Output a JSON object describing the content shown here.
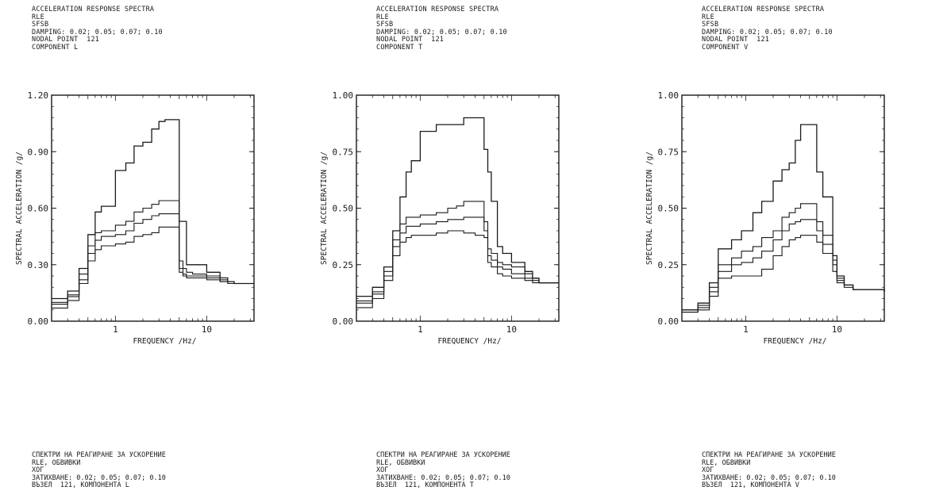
{
  "panels": [
    {
      "header": [
        "ACCELERATION RESPONSE SPECTRA",
        "RLE",
        "SFSB",
        "DAMPING: 0.02; 0.05; 0.07; 0.10",
        "NODAL POINT  121",
        "COMPONENT L"
      ],
      "footer": [
        "СПЕКТРИ НА РЕАГИРАНЕ ЗА УСКОРЕНИЕ",
        "RLE, ОБВИВКИ",
        "ХОГ",
        "ЗАТИХВАНЕ: 0.02; 0.05; 0.07; 0.10",
        "ВЪЗЕЛ  121, КОМПОНЕНТА L"
      ]
    },
    {
      "header": [
        "ACCELERATION RESPONSE SPECTRA",
        "RLE",
        "SFSB",
        "DAMPING: 0.02; 0.05; 0.07; 0.10",
        "NODAL POINT  121",
        "COMPONENT T"
      ],
      "footer": [
        "СПЕКТРИ НА РЕАГИРАНЕ ЗА УСКОРЕНИЕ",
        "RLE, ОБВИВКИ",
        "ХОГ",
        "ЗАТИХВАНЕ: 0.02; 0.05; 0.07; 0.10",
        "ВЪЗЕЛ  121, КОМПОНЕНТА T"
      ]
    },
    {
      "header": [
        "ACCELERATION RESPONSE SPECTRA",
        "RLE",
        "SFSB",
        "DAMPING: 0.02; 0.05; 0.07; 0.10",
        "NODAL POINT  121",
        "COMPONENT V"
      ],
      "footer": [
        "СПЕКТРИ НА РЕАГИРАНЕ ЗА УСКОРЕНИЕ",
        "RLE, ОБВИВКИ",
        "ХОГ",
        "ЗАТИХВАНЕ: 0.02; 0.05; 0.07; 0.10",
        "ВЪЗЕЛ  121, КОМПОНЕНТА V"
      ]
    }
  ],
  "chart_data": [
    {
      "type": "line",
      "xscale": "log",
      "xlim": [
        0.2,
        33
      ],
      "ylim": [
        0,
        1.2
      ],
      "xticks": [
        1,
        10
      ],
      "yticks": [
        0.0,
        0.3,
        0.6,
        0.9,
        1.2
      ],
      "ytick_labels": [
        "0.00",
        "0.30",
        "0.60",
        "0.90",
        "1.20"
      ],
      "xlabel": "FREQUENCY /Hz/",
      "ylabel": "SPECTRAL ACCELERATION /g/",
      "series": [
        {
          "x": [
            0.2,
            0.3,
            0.4,
            0.5,
            0.6,
            0.7,
            0.8,
            1.0,
            1.3,
            1.6,
            2.0,
            2.5,
            3.0,
            3.5,
            4.5,
            5.0,
            5.5,
            6.0,
            7.0,
            10.0,
            14.0,
            17.0,
            20.0,
            33.0
          ],
          "y": [
            0.12,
            0.16,
            0.28,
            0.46,
            0.58,
            0.61,
            0.61,
            0.8,
            0.84,
            0.93,
            0.95,
            1.02,
            1.06,
            1.07,
            1.07,
            0.53,
            0.53,
            0.3,
            0.3,
            0.26,
            0.23,
            0.21,
            0.2,
            0.2
          ]
        },
        {
          "x": [
            0.2,
            0.3,
            0.4,
            0.5,
            0.6,
            0.7,
            0.8,
            1.0,
            1.3,
            1.6,
            2.0,
            2.5,
            3.0,
            3.5,
            4.5,
            5.0,
            5.5,
            6.0,
            7.0,
            10.0,
            14.0,
            17.0,
            20.0,
            33.0
          ],
          "y": [
            0.1,
            0.14,
            0.25,
            0.4,
            0.47,
            0.48,
            0.48,
            0.51,
            0.53,
            0.58,
            0.6,
            0.62,
            0.64,
            0.64,
            0.64,
            0.32,
            0.28,
            0.26,
            0.25,
            0.24,
            0.22,
            0.21,
            0.2,
            0.2
          ]
        },
        {
          "x": [
            0.2,
            0.3,
            0.4,
            0.5,
            0.6,
            0.7,
            0.8,
            1.0,
            1.3,
            1.6,
            2.0,
            2.5,
            3.0,
            3.5,
            4.5,
            5.0,
            5.5,
            6.0,
            7.0,
            10.0,
            14.0,
            17.0,
            20.0,
            33.0
          ],
          "y": [
            0.09,
            0.13,
            0.22,
            0.36,
            0.43,
            0.45,
            0.45,
            0.46,
            0.48,
            0.52,
            0.54,
            0.56,
            0.57,
            0.57,
            0.57,
            0.28,
            0.25,
            0.24,
            0.24,
            0.23,
            0.21,
            0.2,
            0.2,
            0.2
          ]
        },
        {
          "x": [
            0.2,
            0.3,
            0.4,
            0.5,
            0.6,
            0.7,
            0.8,
            1.0,
            1.3,
            1.6,
            2.0,
            2.5,
            3.0,
            3.5,
            4.5,
            5.0,
            5.5,
            6.0,
            7.0,
            10.0,
            14.0,
            17.0,
            20.0,
            33.0
          ],
          "y": [
            0.07,
            0.11,
            0.2,
            0.32,
            0.38,
            0.4,
            0.4,
            0.41,
            0.42,
            0.45,
            0.46,
            0.47,
            0.5,
            0.5,
            0.5,
            0.26,
            0.24,
            0.23,
            0.23,
            0.22,
            0.21,
            0.2,
            0.2,
            0.2
          ]
        }
      ]
    },
    {
      "type": "line",
      "xscale": "log",
      "xlim": [
        0.2,
        33
      ],
      "ylim": [
        0,
        1.0
      ],
      "xticks": [
        1,
        10
      ],
      "yticks": [
        0.0,
        0.25,
        0.5,
        0.75,
        1.0
      ],
      "ytick_labels": [
        "0.00",
        "0.25",
        "0.50",
        "0.75",
        "1.00"
      ],
      "xlabel": "FREQUENCY /Hz/",
      "ylabel": "SPECTRAL ACCELERATION /g/",
      "series": [
        {
          "x": [
            0.2,
            0.3,
            0.4,
            0.5,
            0.6,
            0.7,
            0.8,
            1.0,
            1.5,
            2.0,
            2.5,
            3.0,
            4.0,
            5.0,
            5.5,
            6.0,
            7.0,
            8.0,
            10.0,
            14.0,
            17.0,
            20.0,
            33.0
          ],
          "y": [
            0.11,
            0.15,
            0.24,
            0.4,
            0.55,
            0.66,
            0.71,
            0.84,
            0.87,
            0.87,
            0.87,
            0.9,
            0.9,
            0.76,
            0.66,
            0.53,
            0.33,
            0.3,
            0.26,
            0.22,
            0.19,
            0.17,
            0.17
          ]
        },
        {
          "x": [
            0.2,
            0.3,
            0.4,
            0.5,
            0.6,
            0.7,
            0.8,
            1.0,
            1.5,
            2.0,
            2.5,
            3.0,
            4.0,
            5.0,
            5.5,
            6.0,
            7.0,
            8.0,
            10.0,
            14.0,
            17.0,
            20.0,
            33.0
          ],
          "y": [
            0.09,
            0.13,
            0.22,
            0.36,
            0.43,
            0.46,
            0.46,
            0.47,
            0.48,
            0.5,
            0.51,
            0.53,
            0.53,
            0.44,
            0.32,
            0.3,
            0.26,
            0.25,
            0.24,
            0.21,
            0.19,
            0.17,
            0.17
          ]
        },
        {
          "x": [
            0.2,
            0.3,
            0.4,
            0.5,
            0.6,
            0.7,
            0.8,
            1.0,
            1.5,
            2.0,
            2.5,
            3.0,
            4.0,
            5.0,
            5.5,
            6.0,
            7.0,
            8.0,
            10.0,
            14.0,
            17.0,
            20.0,
            33.0
          ],
          "y": [
            0.08,
            0.12,
            0.2,
            0.33,
            0.39,
            0.42,
            0.42,
            0.43,
            0.44,
            0.45,
            0.45,
            0.46,
            0.46,
            0.4,
            0.29,
            0.27,
            0.24,
            0.23,
            0.21,
            0.19,
            0.18,
            0.17,
            0.17
          ]
        },
        {
          "x": [
            0.2,
            0.3,
            0.4,
            0.5,
            0.6,
            0.7,
            0.8,
            1.0,
            1.5,
            2.0,
            2.5,
            3.0,
            4.0,
            5.0,
            5.5,
            6.0,
            7.0,
            8.0,
            10.0,
            14.0,
            17.0,
            20.0,
            33.0
          ],
          "y": [
            0.06,
            0.1,
            0.18,
            0.29,
            0.35,
            0.37,
            0.38,
            0.38,
            0.39,
            0.4,
            0.4,
            0.39,
            0.38,
            0.37,
            0.26,
            0.24,
            0.21,
            0.2,
            0.19,
            0.18,
            0.17,
            0.17,
            0.17
          ]
        }
      ]
    },
    {
      "type": "line",
      "xscale": "log",
      "xlim": [
        0.2,
        33
      ],
      "ylim": [
        0,
        1.0
      ],
      "xticks": [
        1,
        10
      ],
      "yticks": [
        0.0,
        0.25,
        0.5,
        0.75,
        1.0
      ],
      "ytick_labels": [
        "0.00",
        "0.25",
        "0.50",
        "0.75",
        "1.00"
      ],
      "xlabel": "FREQUENCY /Hz/",
      "ylabel": "SPECTRAL ACCELERATION /g/",
      "series": [
        {
          "x": [
            0.2,
            0.3,
            0.4,
            0.5,
            0.7,
            0.9,
            1.2,
            1.5,
            2.0,
            2.5,
            3.0,
            3.5,
            4.0,
            5.0,
            6.0,
            7.0,
            9.0,
            10.0,
            12.0,
            15.0,
            20.0,
            33.0
          ],
          "y": [
            0.05,
            0.08,
            0.17,
            0.32,
            0.36,
            0.4,
            0.48,
            0.53,
            0.62,
            0.67,
            0.7,
            0.8,
            0.87,
            0.87,
            0.66,
            0.55,
            0.29,
            0.2,
            0.16,
            0.14,
            0.14,
            0.13
          ]
        },
        {
          "x": [
            0.2,
            0.3,
            0.4,
            0.5,
            0.7,
            0.9,
            1.2,
            1.5,
            2.0,
            2.5,
            3.0,
            3.5,
            4.0,
            5.0,
            6.0,
            7.0,
            9.0,
            10.0,
            12.0,
            15.0,
            20.0,
            33.0
          ],
          "y": [
            0.05,
            0.07,
            0.15,
            0.25,
            0.28,
            0.31,
            0.33,
            0.37,
            0.4,
            0.46,
            0.48,
            0.5,
            0.52,
            0.52,
            0.44,
            0.38,
            0.27,
            0.19,
            0.16,
            0.14,
            0.14,
            0.13
          ]
        },
        {
          "x": [
            0.2,
            0.3,
            0.4,
            0.5,
            0.7,
            0.9,
            1.2,
            1.5,
            2.0,
            2.5,
            3.0,
            3.5,
            4.0,
            5.0,
            6.0,
            7.0,
            9.0,
            10.0,
            12.0,
            15.0,
            20.0,
            33.0
          ],
          "y": [
            0.04,
            0.06,
            0.13,
            0.22,
            0.25,
            0.26,
            0.28,
            0.31,
            0.36,
            0.4,
            0.43,
            0.44,
            0.45,
            0.45,
            0.4,
            0.34,
            0.25,
            0.18,
            0.16,
            0.14,
            0.14,
            0.13
          ]
        },
        {
          "x": [
            0.2,
            0.3,
            0.4,
            0.5,
            0.7,
            0.9,
            1.2,
            1.5,
            2.0,
            2.5,
            3.0,
            3.5,
            4.0,
            5.0,
            6.0,
            7.0,
            9.0,
            10.0,
            12.0,
            15.0,
            20.0,
            33.0
          ],
          "y": [
            0.04,
            0.05,
            0.11,
            0.19,
            0.2,
            0.2,
            0.2,
            0.23,
            0.29,
            0.33,
            0.36,
            0.37,
            0.38,
            0.38,
            0.35,
            0.3,
            0.22,
            0.17,
            0.15,
            0.14,
            0.14,
            0.13
          ]
        }
      ]
    }
  ]
}
